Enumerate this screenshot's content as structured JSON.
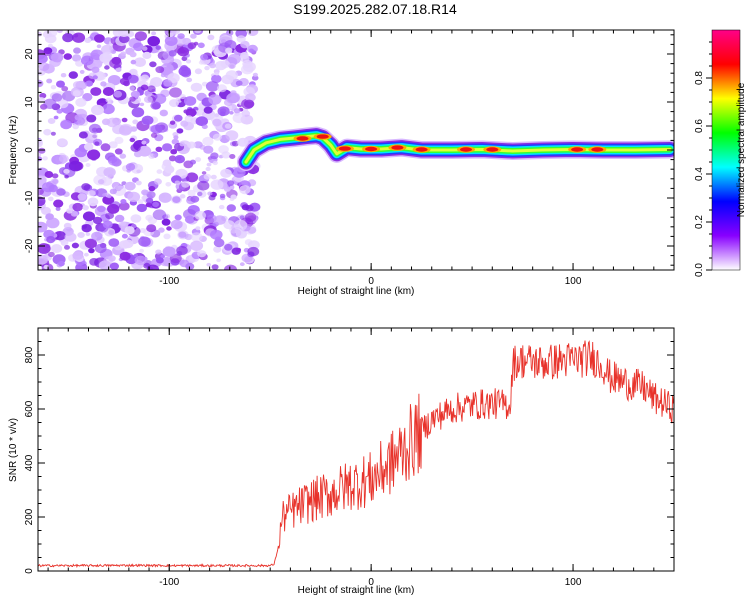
{
  "figure_title": "S199.2025.282.07.18.R14",
  "chart_data": [
    {
      "type": "heatmap",
      "title": "S199.2025.282.07.18.R14",
      "xlabel": "Height of straight line (km)",
      "ylabel": "Frequency (Hz)",
      "xlim": [
        -165,
        150
      ],
      "ylim": [
        -25,
        25
      ],
      "x_ticks": [
        "-100",
        "0",
        "100"
      ],
      "y_ticks": [
        "-20",
        "-10",
        "0",
        "10",
        "20"
      ],
      "colorbar": {
        "label": "Normalized spectral amplitude",
        "range": [
          0,
          1
        ],
        "ticks": [
          "0.0",
          "0.2",
          "0.4",
          "0.6",
          "0.8"
        ],
        "colors": [
          "#ffffff",
          "#8800ff",
          "#0000ff",
          "#00ffff",
          "#00ff00",
          "#ffff00",
          "#ff0000",
          "#ff0088"
        ]
      },
      "noise_region_x": [
        -165,
        -60
      ],
      "signal_track": {
        "x": [
          -62,
          -58,
          -52,
          -45,
          -38,
          -32,
          -27,
          -24,
          -20,
          -17,
          -12,
          -5,
          5,
          15,
          25,
          40,
          55,
          70,
          85,
          100,
          115,
          130,
          148
        ],
        "y": [
          -2.5,
          0,
          1.5,
          2.2,
          2.5,
          2.8,
          3.0,
          2.6,
          1.0,
          -0.8,
          0.5,
          0.2,
          0.2,
          0.5,
          0.0,
          0.0,
          0.1,
          -0.2,
          0.0,
          0.1,
          0.0,
          0.0,
          0.1
        ],
        "peaks": [
          {
            "x": -34,
            "y": 2.4,
            "amp": 0.95
          },
          {
            "x": -24,
            "y": 2.8,
            "amp": 0.9
          },
          {
            "x": -13,
            "y": 0.3,
            "amp": 0.85
          },
          {
            "x": 0,
            "y": 0.2,
            "amp": 0.95
          },
          {
            "x": 13,
            "y": 0.5,
            "amp": 0.9
          },
          {
            "x": 25,
            "y": 0.1,
            "amp": 0.85
          },
          {
            "x": 47,
            "y": 0.1,
            "amp": 0.9
          },
          {
            "x": 60,
            "y": 0.1,
            "amp": 0.9
          },
          {
            "x": 102,
            "y": 0.1,
            "amp": 0.85
          },
          {
            "x": 112,
            "y": 0.1,
            "amp": 0.9
          }
        ]
      }
    },
    {
      "type": "line",
      "xlabel": "Height of straight line (km)",
      "ylabel": "SNR (10 * v/v)",
      "xlim": [
        -165,
        150
      ],
      "ylim": [
        0,
        900
      ],
      "x_ticks": [
        "-100",
        "0",
        "100"
      ],
      "y_ticks": [
        "0",
        "200",
        "400",
        "600",
        "800"
      ],
      "series": [
        {
          "name": "SNR",
          "color": "#e8332b",
          "x": [
            -165,
            -140,
            -120,
            -100,
            -80,
            -60,
            -50,
            -48,
            -46,
            -44,
            -40,
            -30,
            -20,
            -10,
            0,
            10,
            20,
            30,
            40,
            50,
            60,
            69,
            70,
            75,
            85,
            95,
            105,
            110,
            115,
            118,
            125,
            135,
            140,
            150
          ],
          "y": [
            20,
            20,
            21,
            20,
            20,
            20,
            20,
            25,
            90,
            200,
            220,
            260,
            285,
            320,
            340,
            400,
            480,
            560,
            600,
            615,
            620,
            615,
            770,
            780,
            770,
            780,
            785,
            790,
            760,
            720,
            700,
            680,
            640,
            600
          ]
        }
      ]
    }
  ]
}
